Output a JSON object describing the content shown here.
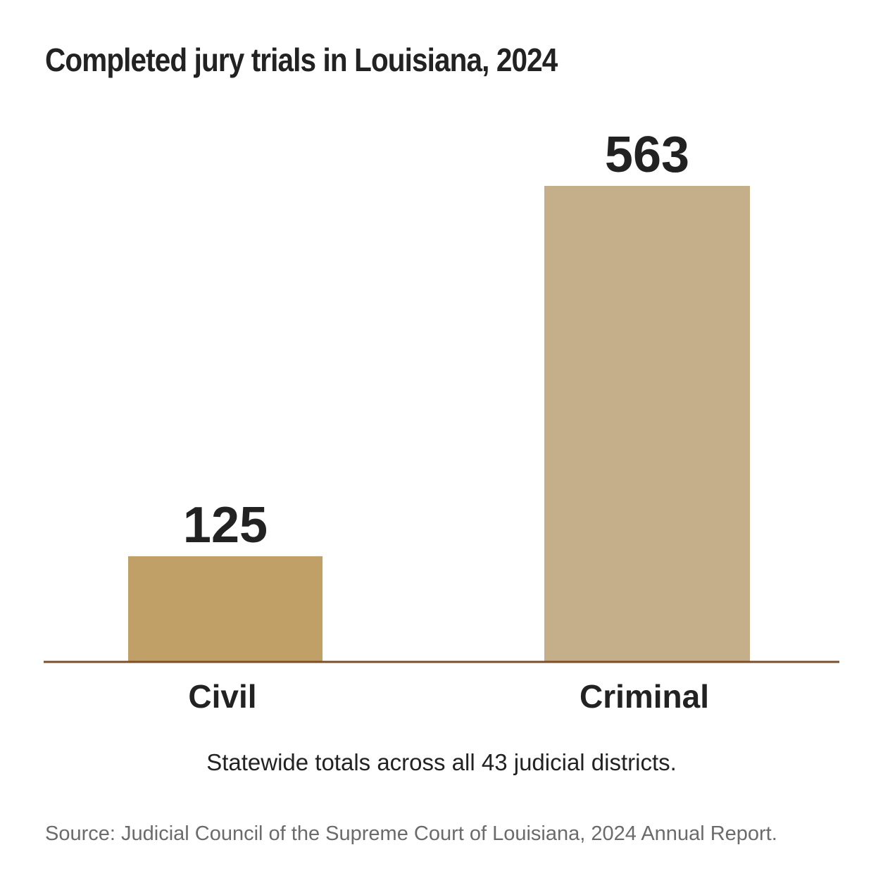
{
  "chart_data": {
    "type": "bar",
    "title": "Completed jury trials in Louisiana, 2024",
    "categories": [
      "Civil",
      "Criminal"
    ],
    "values": [
      125,
      563
    ],
    "value_labels": [
      "125",
      "563"
    ],
    "xlabel": "",
    "ylabel": "",
    "ylim": [
      0,
      563
    ],
    "grid": false,
    "legend": "none",
    "bar_colors": [
      "#c1a068",
      "#c5ae8a"
    ],
    "baseline_color": "#7a4f2a"
  },
  "note": "Statewide totals across all 43 judicial districts.",
  "source": "Source: Judicial Council of the Supreme Court of Louisiana, 2024 Annual Report."
}
